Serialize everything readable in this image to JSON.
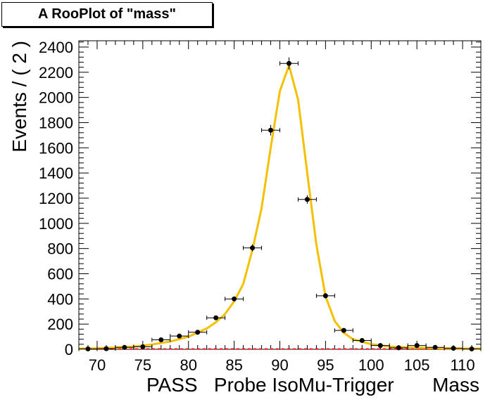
{
  "title": "A RooPlot of \"mass\"",
  "chart_data": {
    "type": "scatter",
    "title": "A RooPlot of \"mass\"",
    "xlabel": "PASS   Probe IsoMu-Trigger       Mass",
    "ylabel": "Events / ( 2 )",
    "xlim": [
      68,
      112
    ],
    "ylim": [
      0,
      2450
    ],
    "xticks": [
      70,
      75,
      80,
      85,
      90,
      95,
      100,
      105,
      110
    ],
    "yticks": [
      0,
      200,
      400,
      600,
      800,
      1000,
      1200,
      1400,
      1600,
      1800,
      2000,
      2200,
      2400
    ],
    "bin_halfwidth": 1,
    "points": {
      "x": [
        69,
        71,
        73,
        75,
        77,
        79,
        81,
        83,
        85,
        87,
        89,
        91,
        93,
        95,
        97,
        99,
        101,
        103,
        105,
        107,
        109,
        111
      ],
      "y": [
        3,
        5,
        15,
        20,
        75,
        105,
        135,
        250,
        400,
        805,
        1740,
        2270,
        1190,
        425,
        150,
        70,
        30,
        12,
        30,
        15,
        8,
        3
      ],
      "yerr": [
        2,
        2,
        4,
        5,
        9,
        10,
        12,
        16,
        20,
        28,
        42,
        48,
        34,
        21,
        12,
        8,
        6,
        3,
        6,
        4,
        3,
        2
      ]
    },
    "fit_curve": {
      "color": "#f5c000",
      "x": [
        68,
        70,
        72,
        74,
        76,
        78,
        80,
        82,
        83,
        84,
        85,
        86,
        87,
        88,
        89,
        90,
        91,
        92,
        93,
        94,
        95,
        96,
        97,
        98,
        100,
        102,
        104,
        106,
        108,
        110,
        112
      ],
      "y": [
        5,
        8,
        14,
        22,
        38,
        62,
        100,
        165,
        215,
        280,
        380,
        520,
        790,
        1120,
        1600,
        2050,
        2255,
        1980,
        1400,
        830,
        420,
        225,
        130,
        80,
        40,
        22,
        15,
        11,
        8,
        6,
        5
      ]
    },
    "background_curve": {
      "color": "#ff0000",
      "y_constant": 2
    },
    "point_color": "#000000"
  }
}
